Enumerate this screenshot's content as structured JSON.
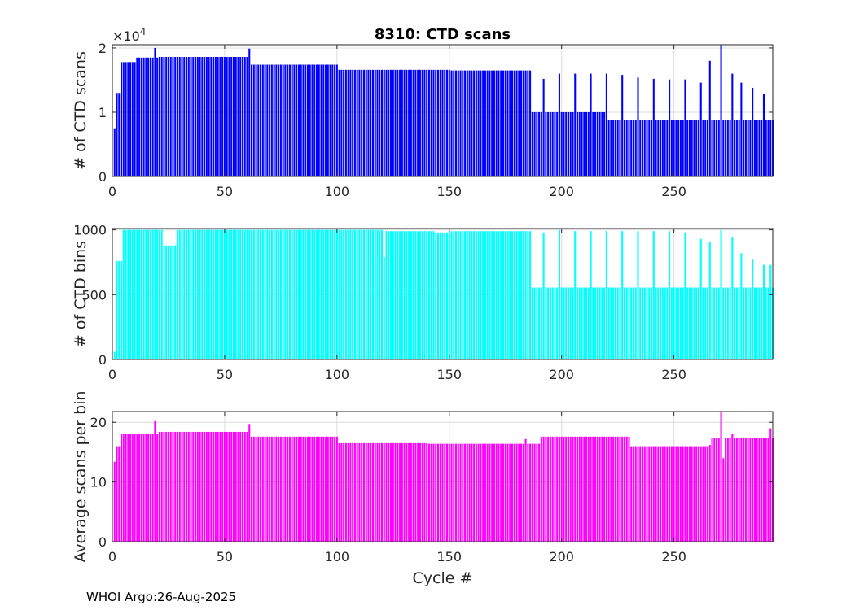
{
  "chart_data": [
    {
      "type": "bar",
      "title": "8310: CTD scans",
      "ylabel": "# of CTD scans",
      "xlabel": "",
      "xlim": [
        0,
        294
      ],
      "ylim": [
        0,
        20500
      ],
      "x_ticks": [
        0,
        50,
        100,
        150,
        200,
        250
      ],
      "y_ticks": [
        0,
        10000,
        20000
      ],
      "y_tick_labels": [
        "0",
        "1",
        "2"
      ],
      "y_multiplier_label": "×10",
      "y_multiplier_exponent": "4",
      "color": "#0000ff",
      "grid": true,
      "series": [
        {
          "name": "CTD scans",
          "segments": [
            {
              "from": 1,
              "to": 1,
              "value": 7500
            },
            {
              "from": 2,
              "to": 3,
              "value": 13000
            },
            {
              "from": 4,
              "to": 10,
              "value": 17800
            },
            {
              "from": 11,
              "to": 20,
              "value": 18500
            },
            {
              "from": 21,
              "to": 60,
              "value": 18600
            },
            {
              "from": 61,
              "to": 100,
              "value": 17400
            },
            {
              "from": 101,
              "to": 150,
              "value": 16600
            },
            {
              "from": 151,
              "to": 186,
              "value": 16500
            },
            {
              "from": 187,
              "to": 220,
              "value": 10000
            },
            {
              "from": 221,
              "to": 294,
              "value": 8800
            }
          ],
          "overrides": [
            {
              "cycle": 19,
              "value": 20000
            },
            {
              "cycle": 61,
              "value": 19900
            },
            {
              "cycle": 192,
              "value": 15200
            },
            {
              "cycle": 199,
              "value": 16000
            },
            {
              "cycle": 206,
              "value": 16000
            },
            {
              "cycle": 213,
              "value": 16000
            },
            {
              "cycle": 220,
              "value": 16000
            },
            {
              "cycle": 227,
              "value": 15800
            },
            {
              "cycle": 234,
              "value": 15400
            },
            {
              "cycle": 241,
              "value": 15200
            },
            {
              "cycle": 248,
              "value": 15100
            },
            {
              "cycle": 255,
              "value": 15100
            },
            {
              "cycle": 262,
              "value": 14600
            },
            {
              "cycle": 266,
              "value": 18000
            },
            {
              "cycle": 271,
              "value": 20500
            },
            {
              "cycle": 276,
              "value": 16000
            },
            {
              "cycle": 280,
              "value": 14600
            },
            {
              "cycle": 285,
              "value": 13800
            },
            {
              "cycle": 290,
              "value": 12800
            }
          ]
        }
      ]
    },
    {
      "type": "bar",
      "title": "",
      "ylabel": "# of CTD bins",
      "xlabel": "",
      "xlim": [
        0,
        294
      ],
      "ylim": [
        0,
        1010
      ],
      "x_ticks": [
        0,
        50,
        100,
        150,
        200,
        250
      ],
      "y_ticks": [
        0,
        500,
        1000
      ],
      "y_tick_labels": [
        "0",
        "500",
        "1000"
      ],
      "color": "#00ffff",
      "grid": true,
      "series": [
        {
          "name": "CTD bins",
          "segments": [
            {
              "from": 1,
              "to": 1,
              "value": 60
            },
            {
              "from": 2,
              "to": 4,
              "value": 760
            },
            {
              "from": 5,
              "to": 22,
              "value": 1000
            },
            {
              "from": 23,
              "to": 28,
              "value": 880
            },
            {
              "from": 29,
              "to": 120,
              "value": 1000
            },
            {
              "from": 121,
              "to": 121,
              "value": 790
            },
            {
              "from": 122,
              "to": 143,
              "value": 990
            },
            {
              "from": 144,
              "to": 150,
              "value": 980
            },
            {
              "from": 151,
              "to": 186,
              "value": 990
            },
            {
              "from": 187,
              "to": 294,
              "value": 555
            }
          ],
          "overrides": [
            {
              "cycle": 192,
              "value": 980
            },
            {
              "cycle": 199,
              "value": 1000
            },
            {
              "cycle": 206,
              "value": 990
            },
            {
              "cycle": 213,
              "value": 990
            },
            {
              "cycle": 220,
              "value": 990
            },
            {
              "cycle": 227,
              "value": 990
            },
            {
              "cycle": 234,
              "value": 990
            },
            {
              "cycle": 241,
              "value": 990
            },
            {
              "cycle": 248,
              "value": 990
            },
            {
              "cycle": 255,
              "value": 980
            },
            {
              "cycle": 262,
              "value": 930
            },
            {
              "cycle": 266,
              "value": 910
            },
            {
              "cycle": 271,
              "value": 1000
            },
            {
              "cycle": 276,
              "value": 940
            },
            {
              "cycle": 280,
              "value": 820
            },
            {
              "cycle": 285,
              "value": 770
            },
            {
              "cycle": 290,
              "value": 730
            },
            {
              "cycle": 293,
              "value": 730
            }
          ]
        }
      ]
    },
    {
      "type": "bar",
      "title": "",
      "ylabel": "Average scans per bin",
      "xlabel": "Cycle #",
      "xlim": [
        0,
        294
      ],
      "ylim": [
        0,
        21.8
      ],
      "x_ticks": [
        0,
        50,
        100,
        150,
        200,
        250
      ],
      "y_ticks": [
        0,
        10,
        20
      ],
      "y_tick_labels": [
        "0",
        "10",
        "20"
      ],
      "color": "#ff00ff",
      "grid": true,
      "series": [
        {
          "name": "Average scans per bin",
          "segments": [
            {
              "from": 1,
              "to": 1,
              "value": 13.4
            },
            {
              "from": 2,
              "to": 3,
              "value": 16.0
            },
            {
              "from": 4,
              "to": 20,
              "value": 18.0
            },
            {
              "from": 21,
              "to": 60,
              "value": 18.4
            },
            {
              "from": 61,
              "to": 100,
              "value": 17.6
            },
            {
              "from": 101,
              "to": 140,
              "value": 16.5
            },
            {
              "from": 141,
              "to": 190,
              "value": 16.4
            },
            {
              "from": 191,
              "to": 230,
              "value": 17.6
            },
            {
              "from": 231,
              "to": 265,
              "value": 16.0
            },
            {
              "from": 266,
              "to": 294,
              "value": 17.4
            }
          ],
          "overrides": [
            {
              "cycle": 19,
              "value": 20.2
            },
            {
              "cycle": 61,
              "value": 19.7
            },
            {
              "cycle": 184,
              "value": 17.2
            },
            {
              "cycle": 266,
              "value": 16.2
            },
            {
              "cycle": 271,
              "value": 21.8
            },
            {
              "cycle": 272,
              "value": 14.0
            },
            {
              "cycle": 276,
              "value": 18.0
            },
            {
              "cycle": 293,
              "value": 19.0
            }
          ]
        }
      ]
    }
  ],
  "footer": {
    "text": "WHOI Argo:26-Aug-2025"
  }
}
